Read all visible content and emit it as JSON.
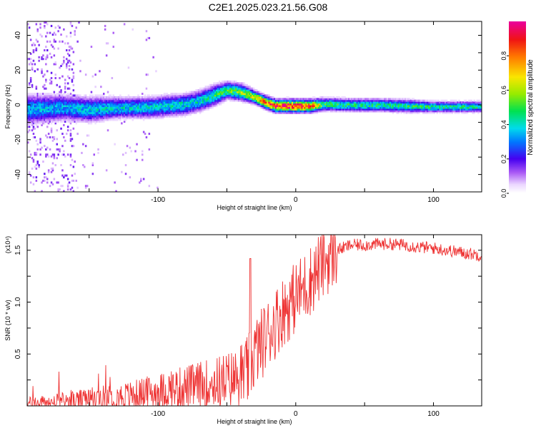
{
  "title": "C2E1.2025.023.21.56.G08",
  "chart_data": [
    {
      "type": "heatmap",
      "title": "C2E1.2025.023.21.56.G08",
      "xlabel": "Height of straight line (km)",
      "ylabel": "Frequency (Hz)",
      "xlim": [
        -195,
        135
      ],
      "ylim": [
        -50,
        48
      ],
      "x_ticks": [
        "-100",
        "0",
        "100"
      ],
      "y_ticks": [
        "-40",
        "-20",
        "0",
        "20",
        "40"
      ],
      "colorbar": {
        "label": "Normalized spectral amplitude",
        "range": [
          0,
          1
        ],
        "ticks": [
          "0.0",
          "0.2",
          "0.4",
          "0.6",
          "0.8"
        ]
      },
      "ridge": {
        "x": [
          -195,
          -170,
          -150,
          -130,
          -110,
          -95,
          -80,
          -70,
          -60,
          -50,
          -40,
          -30,
          -22,
          -15,
          -10,
          0,
          10,
          20,
          40,
          60,
          80,
          100,
          120,
          135
        ],
        "freq": [
          -3,
          -2,
          -3,
          -2,
          -2,
          -1,
          0,
          2,
          5,
          8,
          7,
          4,
          1,
          -1,
          -1,
          -1,
          -1,
          0,
          -0.5,
          -0.5,
          -1,
          -1.5,
          -1.5,
          -1.5
        ],
        "spread": [
          7,
          6,
          6,
          5,
          5,
          5,
          5,
          5,
          5,
          4,
          4,
          3,
          3,
          3,
          3,
          3,
          3,
          3,
          3,
          3,
          3,
          2.5,
          2.5,
          2.5
        ],
        "peak_amplitude": [
          0.35,
          0.35,
          0.38,
          0.38,
          0.38,
          0.4,
          0.4,
          0.4,
          0.45,
          0.5,
          0.55,
          0.7,
          0.85,
          0.9,
          0.95,
          0.95,
          0.85,
          0.5,
          0.45,
          0.45,
          0.45,
          0.45,
          0.45,
          0.45
        ]
      },
      "grid": false
    },
    {
      "type": "line",
      "xlabel": "Height of straight line (km)",
      "ylabel": "SNR (10 * v/v)",
      "scale_label": "(x10⁴)",
      "xlim": [
        -195,
        135
      ],
      "ylim": [
        0,
        1.65
      ],
      "x_ticks": [
        "-100",
        "0",
        "100"
      ],
      "y_ticks": [
        "0.5",
        "1.0",
        "1.5"
      ],
      "color": "#ee3333",
      "series": [
        {
          "x": [
            -195,
            -180,
            -160,
            -140,
            -120,
            -100,
            -80,
            -60,
            -50,
            -40,
            -35,
            -30,
            -20,
            -10,
            0,
            10,
            20,
            30,
            40,
            50,
            60,
            70,
            80,
            90,
            100,
            110,
            120,
            130,
            135
          ],
          "y": [
            0.02,
            0.03,
            0.05,
            0.08,
            0.1,
            0.14,
            0.18,
            0.22,
            0.25,
            0.28,
            0.32,
            0.5,
            0.7,
            0.9,
            1.05,
            1.2,
            1.38,
            1.5,
            1.55,
            1.55,
            1.56,
            1.56,
            1.55,
            1.53,
            1.52,
            1.5,
            1.48,
            1.46,
            1.45
          ]
        }
      ],
      "grid": false
    }
  ]
}
